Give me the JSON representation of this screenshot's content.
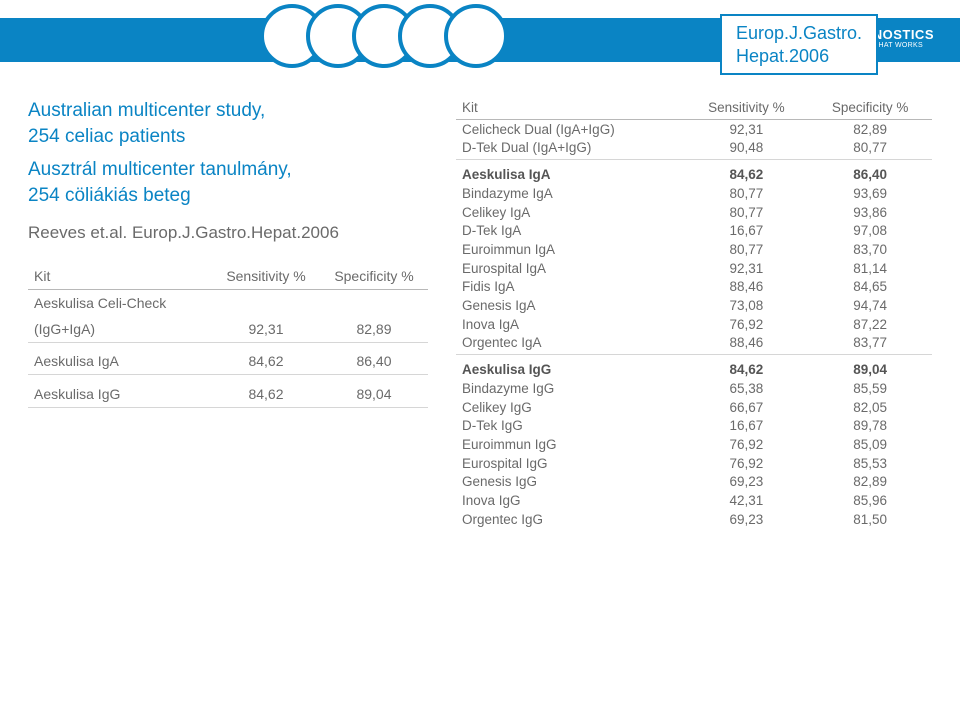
{
  "reference": {
    "line1": "Europ.J.Gastro.",
    "line2": "Hepat.2006"
  },
  "logo": {
    "main": "AESKU.DIAGNOSTICS",
    "sub": "THE DIAGNOSTIC TOOL THAT WORKS"
  },
  "study": {
    "line1": "Australian multicenter study,",
    "line2": "254 celiac patients",
    "line3": "Ausztrál multicenter tanulmány,",
    "line4": "254 cöliákiás beteg",
    "cite": "Reeves et.al. Europ.J.Gastro.Hepat.2006"
  },
  "left_table": {
    "h1": "Kit",
    "h2": "Sensitivity %",
    "h3": "Specificity %",
    "r1c1a": "Aeskulisa Celi-Check",
    "r1c1b": "(IgG+IgA)",
    "r1c2": "92,31",
    "r1c3": "82,89",
    "r2c1": "Aeskulisa IgA",
    "r2c2": "84,62",
    "r2c3": "86,40",
    "r3c1": "Aeskulisa IgG",
    "r3c2": "84,62",
    "r3c3": "89,04"
  },
  "right_table": {
    "h1": "Kit",
    "h2": "Sensitivity %",
    "h3": "Specificity %",
    "rows": [
      [
        "Celicheck Dual (IgA+IgG)",
        "92,31",
        "82,89"
      ],
      [
        "D-Tek Dual (IgA+IgG)",
        "90,48",
        "80,77"
      ],
      [],
      [
        "Aeskulisa IgA",
        "84,62",
        "86,40"
      ],
      [
        "Bindazyme IgA",
        "80,77",
        "93,69"
      ],
      [
        "Celikey IgA",
        "80,77",
        "93,86"
      ],
      [
        "D-Tek IgA",
        "16,67",
        "97,08"
      ],
      [
        "Euroimmun IgA",
        "80,77",
        "83,70"
      ],
      [
        "Eurospital IgA",
        "92,31",
        "81,14"
      ],
      [
        "Fidis IgA",
        "88,46",
        "84,65"
      ],
      [
        "Genesis IgA",
        "73,08",
        "94,74"
      ],
      [
        "Inova IgA",
        "76,92",
        "87,22"
      ],
      [
        "Orgentec IgA",
        "88,46",
        "83,77"
      ],
      [],
      [
        "Aeskulisa IgG",
        "84,62",
        "89,04"
      ],
      [
        "Bindazyme IgG",
        "65,38",
        "85,59"
      ],
      [
        "Celikey IgG",
        "66,67",
        "82,05"
      ],
      [
        "D-Tek IgG",
        "16,67",
        "89,78"
      ],
      [
        "Euroimmun IgG",
        "76,92",
        "85,09"
      ],
      [
        "Eurospital IgG",
        "76,92",
        "85,53"
      ],
      [
        "Genesis IgG",
        "69,23",
        "82,89"
      ],
      [
        "Inova IgG",
        "42,31",
        "85,96"
      ],
      [
        "Orgentec IgG",
        "69,23",
        "81,50"
      ]
    ]
  },
  "style": {
    "accent": "#0a84c4",
    "text_muted": "#6a6a6a",
    "col_widths_right": [
      "48%",
      "26%",
      "26%"
    ],
    "col_widths_left": [
      "46%",
      "27%",
      "27%"
    ]
  }
}
